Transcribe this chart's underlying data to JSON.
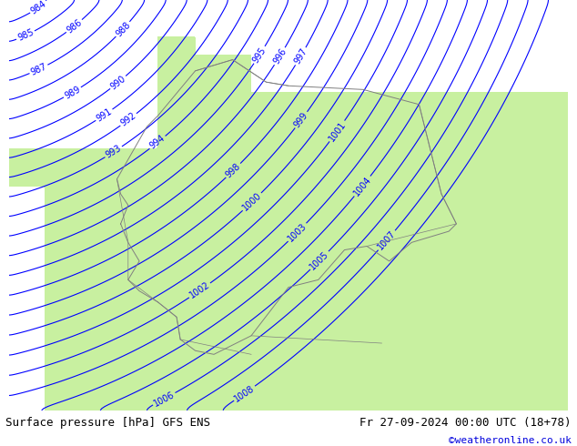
{
  "title_left": "Surface pressure [hPa] GFS ENS",
  "title_right": "Fr 27-09-2024 00:00 UTC (18+78)",
  "credit": "©weatheronline.co.uk",
  "background_color": "#d3d3d3",
  "land_color": "#c8f0a0",
  "sea_color": "#d8d8d8",
  "contour_color": "#0000ff",
  "contour_linewidth": 0.8,
  "label_color": "#0000ff",
  "label_fontsize": 7,
  "border_color": "#808080",
  "text_bottom_color": "#000000",
  "credit_color": "#0000dd",
  "pressure_min": 983,
  "pressure_max": 1008,
  "pressure_step": 1,
  "figsize": [
    6.34,
    4.9
  ],
  "dpi": 100
}
